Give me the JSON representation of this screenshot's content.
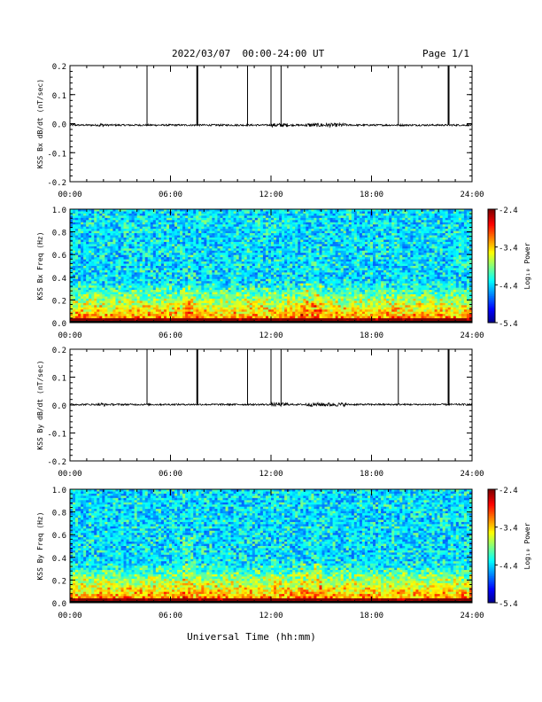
{
  "header": {
    "title": "2022/03/07  00:00-24:00 UT",
    "page_label": "Page 1/1"
  },
  "footer": {
    "xlabel": "Universal Time (hh:mm)"
  },
  "colors": {
    "trace": "#000000",
    "axis": "#000000",
    "background": "#ffffff"
  },
  "chart_data": [
    {
      "type": "line",
      "ylabel": "KSS Bx dB/dt (nT/sec)",
      "xlim": [
        0,
        24
      ],
      "ylim": [
        -0.2,
        0.2
      ],
      "x_ticks": [
        "00:00",
        "06:00",
        "12:00",
        "18:00",
        "24:00"
      ],
      "y_ticks": [
        "0.2",
        "0.1",
        "0.0",
        "-0.1",
        "-0.2"
      ],
      "baseline": -0.005,
      "noise_amplitude": 0.003,
      "spikes_hours": [
        4.6,
        7.6,
        10.6,
        12.0,
        12.6,
        19.6,
        22.6
      ],
      "spike_top": 0.2
    },
    {
      "type": "heatmap",
      "ylabel": "KSS Bx Freq (Hz)",
      "xlim": [
        0,
        24
      ],
      "ylim": [
        0,
        1.0
      ],
      "x_ticks": [
        "00:00",
        "06:00",
        "12:00",
        "18:00",
        "24:00"
      ],
      "y_ticks": [
        "1.0",
        "0.8",
        "0.6",
        "0.4",
        "0.2",
        "0.0"
      ],
      "colorbar": {
        "label": "Log₁₀ Power",
        "ticks": [
          "-2.4",
          "-3.4",
          "-4.4",
          "-5.4"
        ],
        "range": [
          -5.4,
          -2.4
        ]
      }
    },
    {
      "type": "line",
      "ylabel": "KSS By dB/dt (nT/sec)",
      "xlim": [
        0,
        24
      ],
      "ylim": [
        -0.2,
        0.2
      ],
      "x_ticks": [
        "00:00",
        "06:00",
        "12:00",
        "18:00",
        "24:00"
      ],
      "y_ticks": [
        "0.2",
        "0.1",
        "0.0",
        "-0.1",
        "-0.2"
      ],
      "baseline": 0.002,
      "noise_amplitude": 0.003,
      "spikes_hours": [
        4.6,
        7.6,
        10.6,
        12.0,
        12.6,
        19.6,
        22.6
      ],
      "spike_top": 0.2
    },
    {
      "type": "heatmap",
      "ylabel": "KSS By Freq (Hz)",
      "xlim": [
        0,
        24
      ],
      "ylim": [
        0,
        1.0
      ],
      "x_ticks": [
        "00:00",
        "06:00",
        "12:00",
        "18:00",
        "24:00"
      ],
      "y_ticks": [
        "1.0",
        "0.8",
        "0.6",
        "0.4",
        "0.2",
        "0.0"
      ],
      "colorbar": {
        "label": "Log₁₀ Power",
        "ticks": [
          "-2.4",
          "-3.4",
          "-4.4",
          "-5.4"
        ],
        "range": [
          -5.4,
          -2.4
        ]
      }
    }
  ]
}
